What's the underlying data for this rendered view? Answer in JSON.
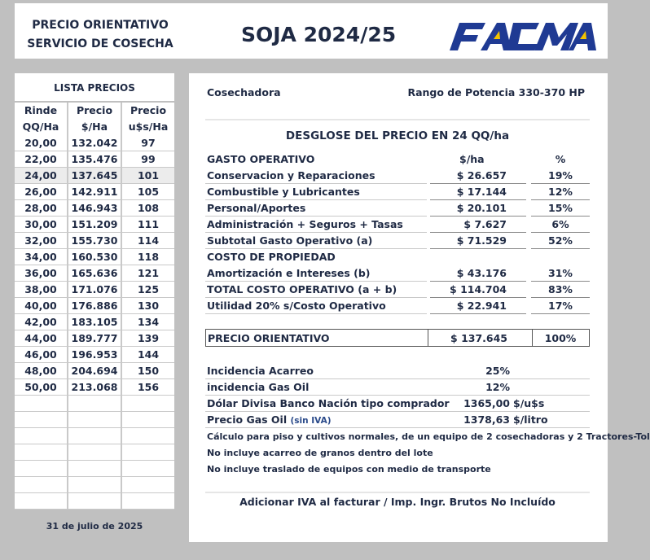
{
  "header": {
    "title_line1": "PRECIO ORIENTATIVO",
    "title_line2": "SERVICIO DE COSECHA",
    "crop_title": "SOJA 2024/25",
    "logo_text": "FACMA",
    "logo_color": "#1f3a93",
    "logo_accent": "#f2c200"
  },
  "price_list": {
    "title": "LISTA PRECIOS",
    "col1": [
      "Rinde",
      "QQ/Ha"
    ],
    "col2": [
      "Precio",
      "$/Ha"
    ],
    "col3": [
      "Precio",
      "u$s/Ha"
    ],
    "rows": [
      {
        "rinde": "20,00",
        "precio": "132.042",
        "usd": "97"
      },
      {
        "rinde": "22,00",
        "precio": "135.476",
        "usd": "99"
      },
      {
        "rinde": "24,00",
        "precio": "137.645",
        "usd": "101"
      },
      {
        "rinde": "26,00",
        "precio": "142.911",
        "usd": "105"
      },
      {
        "rinde": "28,00",
        "precio": "146.943",
        "usd": "108"
      },
      {
        "rinde": "30,00",
        "precio": "151.209",
        "usd": "111"
      },
      {
        "rinde": "32,00",
        "precio": "155.730",
        "usd": "114"
      },
      {
        "rinde": "34,00",
        "precio": "160.530",
        "usd": "118"
      },
      {
        "rinde": "36,00",
        "precio": "165.636",
        "usd": "121"
      },
      {
        "rinde": "38,00",
        "precio": "171.076",
        "usd": "125"
      },
      {
        "rinde": "40,00",
        "precio": "176.886",
        "usd": "130"
      },
      {
        "rinde": "42,00",
        "precio": "183.105",
        "usd": "134"
      },
      {
        "rinde": "44,00",
        "precio": "189.777",
        "usd": "139"
      },
      {
        "rinde": "46,00",
        "precio": "196.953",
        "usd": "144"
      },
      {
        "rinde": "48,00",
        "precio": "204.694",
        "usd": "150"
      },
      {
        "rinde": "50,00",
        "precio": "213.068",
        "usd": "156"
      },
      {
        "rinde": "",
        "precio": "",
        "usd": ""
      },
      {
        "rinde": "",
        "precio": "",
        "usd": ""
      },
      {
        "rinde": "",
        "precio": "",
        "usd": ""
      },
      {
        "rinde": "",
        "precio": "",
        "usd": ""
      },
      {
        "rinde": "",
        "precio": "",
        "usd": ""
      },
      {
        "rinde": "",
        "precio": "",
        "usd": ""
      },
      {
        "rinde": "",
        "precio": "",
        "usd": ""
      }
    ],
    "date": "31 de julio de 2025"
  },
  "detail": {
    "machine": "Cosechadora",
    "power_range": "Rango de Potencia 330-370 HP",
    "breakdown_title": "DESGLOSE DEL PRECIO EN 24 QQ/ha",
    "section1": {
      "label": "GASTO OPERATIVO",
      "amt_header": "$/ha",
      "pct_header": "%"
    },
    "items": [
      {
        "label": "Conservacion y Reparaciones",
        "amt": "$ 26.657",
        "pct": "19%"
      },
      {
        "label": "Combustible y Lubricantes",
        "amt": "$ 17.144",
        "pct": "12%"
      },
      {
        "label": "Personal/Aportes",
        "amt": "$ 20.101",
        "pct": "15%"
      },
      {
        "label": "Administración + Seguros + Tasas",
        "amt": "$ 7.627",
        "pct": "6%"
      },
      {
        "label": "Subtotal Gasto Operativo (a)",
        "amt": "$ 71.529",
        "pct": "52%"
      }
    ],
    "section2": {
      "label": "COSTO DE PROPIEDAD"
    },
    "items2": [
      {
        "label": "Amortización e Intereses (b)",
        "amt": "$ 43.176",
        "pct": "31%"
      },
      {
        "label": "TOTAL COSTO OPERATIVO (a + b)",
        "amt": "$ 114.704",
        "pct": "83%"
      },
      {
        "label": "Utilidad 20% s/Costo Operativo",
        "amt": "$ 22.941",
        "pct": "17%"
      }
    ],
    "precio": {
      "label": "PRECIO ORIENTATIVO",
      "amt": "$ 137.645",
      "pct": "100%"
    },
    "incidences": [
      {
        "label": "Incidencia Acarreo",
        "val": "25%",
        "unit": ""
      },
      {
        "label": "incidencia Gas Oil",
        "val": "12%",
        "unit": ""
      },
      {
        "label": "Dólar Divisa Banco Nación tipo comprador",
        "val": "1365,00",
        "unit": "$/u$s"
      },
      {
        "label": "Precio Gas Oil",
        "label_suffix": "(sin IVA)",
        "val": "1378,63",
        "unit": "$/litro"
      }
    ],
    "notes": [
      "Cálculo para piso y cultivos normales, de un equipo de 2 cosechadoras y 2 Tractores-Tol",
      "No incluye acarreo de granos dentro del lote",
      "No incluye traslado de equipos con medio de transporte"
    ],
    "iva_note": "Adicionar IVA al facturar / Imp. Ingr. Brutos No Incluído"
  }
}
